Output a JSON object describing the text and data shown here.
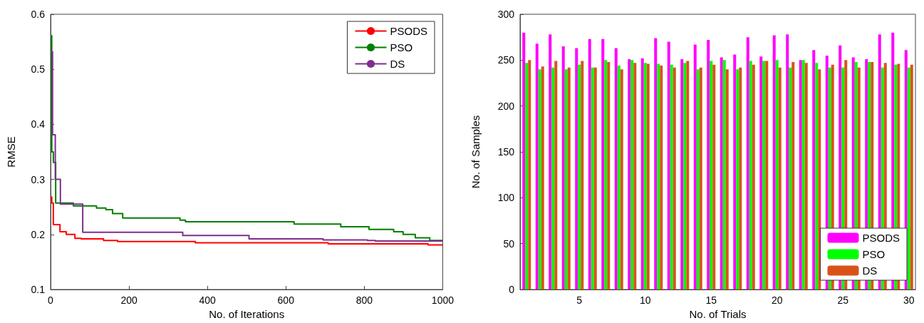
{
  "chart_data": [
    {
      "type": "step",
      "xlabel": "No. of Iterations",
      "ylabel": "RMSE",
      "xlim": [
        0,
        1000
      ],
      "ylim": [
        0.1,
        0.6
      ],
      "xticks": [
        0,
        200,
        400,
        600,
        800,
        1000
      ],
      "yticks": [
        0.1,
        0.2,
        0.3,
        0.4,
        0.5,
        0.6
      ],
      "legend": "top right",
      "grid": false,
      "series": [
        {
          "name": "PSODS",
          "color": "#ff0000",
          "x": [
            0,
            3,
            7,
            24,
            40,
            62,
            78,
            135,
            171,
            369,
            708,
            963,
            1000
          ],
          "values": [
            0.268,
            0.257,
            0.218,
            0.205,
            0.2,
            0.193,
            0.192,
            0.189,
            0.187,
            0.185,
            0.183,
            0.181,
            0.181
          ]
        },
        {
          "name": "PSO",
          "color": "#008000",
          "x": [
            0,
            3,
            7,
            13,
            58,
            117,
            141,
            158,
            184,
            330,
            344,
            621,
            740,
            812,
            875,
            899,
            930,
            967,
            1000
          ],
          "values": [
            0.561,
            0.35,
            0.331,
            0.257,
            0.252,
            0.248,
            0.245,
            0.238,
            0.23,
            0.226,
            0.223,
            0.219,
            0.214,
            0.209,
            0.205,
            0.2,
            0.194,
            0.189,
            0.189
          ]
        },
        {
          "name": "DS",
          "color": "#7e2f8e",
          "x": [
            0,
            5,
            12,
            25,
            82,
            337,
            506,
            695,
            808,
            828,
            1000
          ],
          "values": [
            0.532,
            0.381,
            0.3,
            0.255,
            0.204,
            0.198,
            0.192,
            0.19,
            0.189,
            0.188,
            0.188
          ]
        }
      ]
    },
    {
      "type": "bar",
      "xlabel": "No. of Trials",
      "ylabel": "No. of Samples",
      "categories": [
        null,
        null,
        null,
        null,
        "5",
        null,
        null,
        null,
        null,
        "10",
        null,
        null,
        null,
        null,
        "15",
        null,
        null,
        null,
        null,
        "20",
        null,
        null,
        null,
        null,
        "25",
        null,
        null,
        null,
        null,
        "30"
      ],
      "ylim": [
        0,
        300
      ],
      "yticks": [
        0,
        50,
        100,
        150,
        200,
        250,
        300
      ],
      "legend": "bottom right",
      "grid": false,
      "series": [
        {
          "name": "PSODS",
          "color": "#ff00ff",
          "values": [
            280,
            268,
            278,
            265,
            263,
            273,
            273,
            263,
            251,
            252,
            274,
            270,
            251,
            267,
            272,
            253,
            256,
            275,
            254,
            277,
            278,
            250,
            261,
            255,
            266,
            253,
            251,
            278,
            280,
            261
          ]
        },
        {
          "name": "PSO",
          "color": "#00ff00",
          "values": [
            247,
            240,
            242,
            240,
            245,
            242,
            250,
            244,
            250,
            247,
            246,
            245,
            247,
            240,
            249,
            250,
            240,
            249,
            249,
            250,
            242,
            250,
            247,
            242,
            242,
            248,
            248,
            242,
            245,
            242
          ]
        },
        {
          "name": "DS",
          "color": "#d95319",
          "values": [
            250,
            243,
            249,
            242,
            249,
            242,
            248,
            240,
            247,
            246,
            244,
            242,
            249,
            242,
            245,
            240,
            242,
            245,
            249,
            242,
            248,
            247,
            240,
            245,
            250,
            242,
            248,
            247,
            246,
            245
          ]
        }
      ]
    }
  ]
}
